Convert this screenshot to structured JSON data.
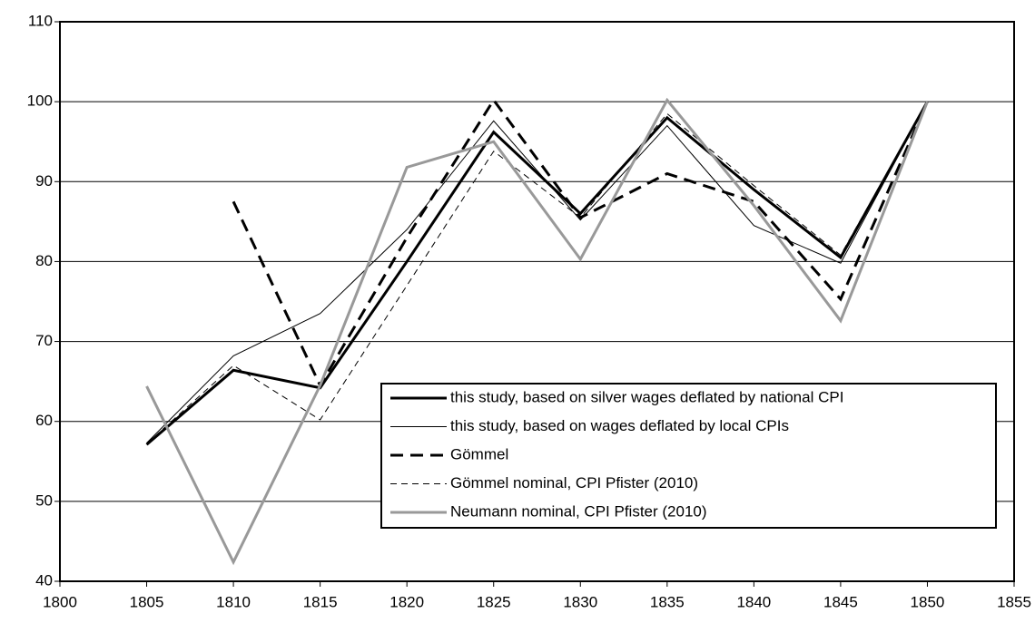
{
  "chart_data": {
    "type": "line",
    "x": [
      1805,
      1810,
      1815,
      1820,
      1825,
      1830,
      1835,
      1840,
      1845,
      1850
    ],
    "series": [
      {
        "name": "this study, based on silver wages deflated by national CPI",
        "color": "#000000",
        "width": 3,
        "dash": "none",
        "values": [
          57.1,
          66.4,
          64.2,
          80,
          96.2,
          86,
          98,
          89,
          80.5,
          100
        ]
      },
      {
        "name": "this study, based on wages deflated by local CPIs",
        "color": "#000000",
        "width": 1,
        "dash": "none",
        "values": [
          57.3,
          68.2,
          73.5,
          84,
          97.6,
          85.2,
          97,
          84.5,
          79.8,
          100
        ]
      },
      {
        "name": "Gömmel",
        "color": "#000000",
        "width": 3,
        "dash": "14 8",
        "values": [
          null,
          87.5,
          64.5,
          83,
          100.2,
          85.5,
          91,
          87.5,
          75.3,
          100
        ]
      },
      {
        "name": "Gömmel nominal, CPI Pfister (2010)",
        "color": "#000000",
        "width": 1,
        "dash": "7 5",
        "values": [
          57.2,
          67,
          60.2,
          77,
          93.8,
          85.5,
          98.5,
          89.5,
          80.8,
          100
        ]
      },
      {
        "name": "Neumann nominal, CPI Pfister (2010)",
        "color": "#999999",
        "width": 3,
        "dash": "none",
        "values": [
          64.4,
          42.4,
          64.5,
          91.8,
          95,
          80.3,
          100.2,
          87,
          72.6,
          100
        ]
      }
    ],
    "xlim": [
      1800,
      1855
    ],
    "xticks": [
      1800,
      1805,
      1810,
      1815,
      1820,
      1825,
      1830,
      1835,
      1840,
      1845,
      1850,
      1855
    ],
    "ylim": [
      40,
      110
    ],
    "yticks": [
      40,
      50,
      60,
      70,
      80,
      90,
      100,
      110
    ],
    "grid": true,
    "legend": "lower-right"
  }
}
